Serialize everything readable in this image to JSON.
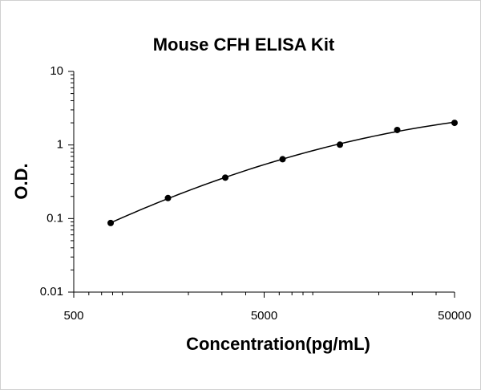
{
  "chart_data": {
    "type": "scatter",
    "title": "Mouse CFH ELISA Kit",
    "x_label": "Concentration(pg/mL)",
    "y_label": "O.D.",
    "x_log": true,
    "y_log": true,
    "xlim": [
      500,
      50000
    ],
    "xticks": [
      500,
      5000,
      50000
    ],
    "ylim": [
      0.01,
      10
    ],
    "yticks": [
      0.01,
      0.1,
      1,
      10
    ],
    "color": "#000000",
    "trendline": true,
    "x": [
      781.25,
      1562.5,
      3125,
      6250,
      12500,
      25000,
      50000
    ],
    "values": [
      0.087,
      0.19,
      0.36,
      0.64,
      1.01,
      1.6,
      2.0
    ]
  }
}
